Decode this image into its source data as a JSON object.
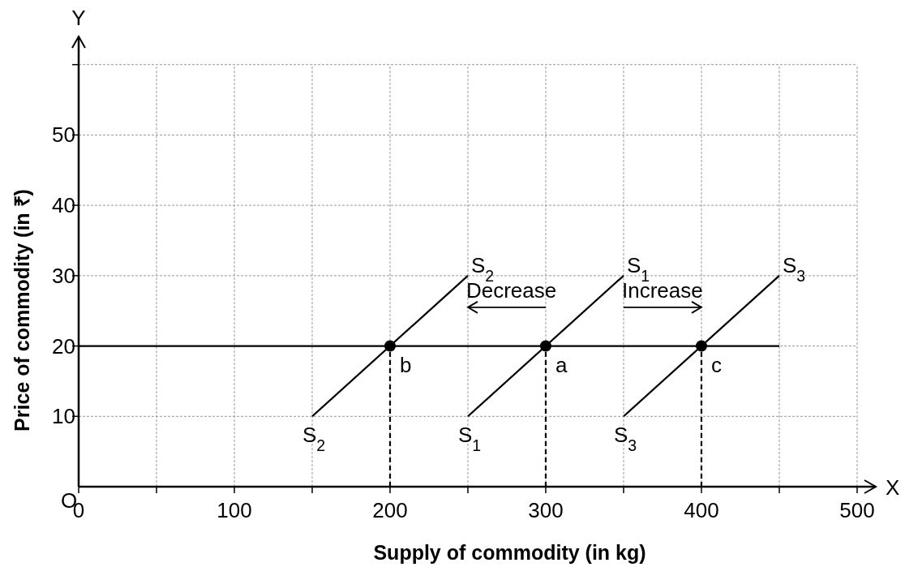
{
  "chart_data": {
    "type": "line",
    "xlabel": "Supply of commodity (in kg)",
    "ylabel": "Price of commodity (in ₹)",
    "xlim": [
      0,
      512
    ],
    "ylim": [
      0,
      64
    ],
    "xticks": [
      0,
      {
        "value": 50,
        "label": null
      },
      100,
      {
        "value": 150,
        "label": null
      },
      200,
      {
        "value": 250,
        "label": null
      },
      300,
      {
        "value": 350,
        "label": null
      },
      400,
      {
        "value": 450,
        "label": null
      },
      500
    ],
    "yticks": [
      10,
      20,
      30,
      40,
      50,
      {
        "value": 60,
        "label": null
      }
    ],
    "grid": true,
    "series": [
      {
        "name": "S$_{2}$",
        "x": [
          150,
          250
        ],
        "values": [
          10,
          30
        ],
        "color": "#000000"
      },
      {
        "name": "S$_{1}$",
        "x": [
          250,
          350
        ],
        "values": [
          10,
          30
        ],
        "color": "#000000"
      },
      {
        "name": "S$_{3}$",
        "x": [
          350,
          450
        ],
        "values": [
          10,
          30
        ],
        "color": "#000000"
      },
      {
        "x": [
          0,
          450
        ],
        "values": [
          20,
          20
        ],
        "color": "#000000"
      },
      {
        "x": [
          200,
          200
        ],
        "values": [
          0,
          20
        ],
        "color": "#000000",
        "line_style": "dashed"
      },
      {
        "x": [
          300,
          300
        ],
        "values": [
          0,
          20
        ],
        "color": "#000000",
        "line_style": "dashed"
      },
      {
        "x": [
          400,
          400
        ],
        "values": [
          0,
          20
        ],
        "color": "#000000",
        "line_style": "dashed"
      },
      {
        "type": "scatter",
        "x": [
          200,
          300,
          400
        ],
        "values": [
          20,
          20,
          20
        ],
        "color": "#000000",
        "marker": "circle"
      }
    ],
    "annotations": [
      {
        "text": "b",
        "x": 200,
        "y": 20
      },
      {
        "text": "a",
        "x": 300,
        "y": 20
      },
      {
        "text": "c",
        "x": 400,
        "y": 20
      },
      "Decrease",
      "Increase",
      "X",
      "Y",
      "O"
    ]
  }
}
